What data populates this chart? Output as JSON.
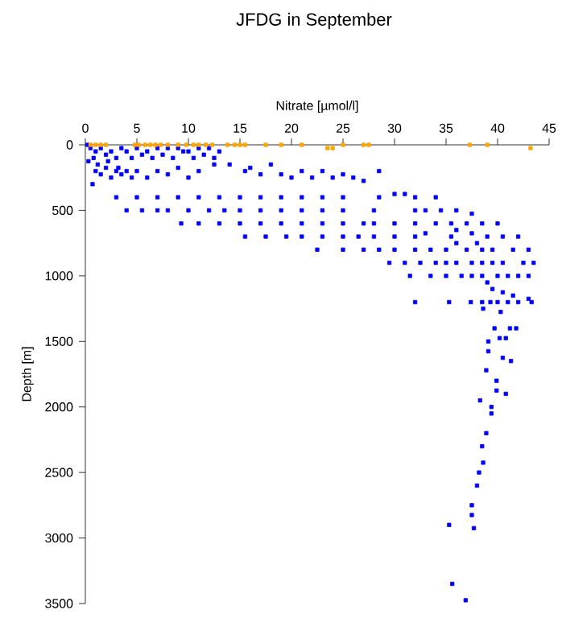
{
  "chart_data": {
    "type": "scatter",
    "title": "JFDG in September",
    "xlabel": "Nitrate [µmol/l]",
    "ylabel": "Depth [m]",
    "xlim": [
      0,
      45
    ],
    "xticks": [
      0,
      5,
      10,
      15,
      20,
      25,
      30,
      35,
      40,
      45
    ],
    "ylim": [
      3500,
      0
    ],
    "yticks": [
      0,
      500,
      1000,
      1500,
      2000,
      2500,
      3000,
      3500
    ],
    "marker": "square",
    "grid": false,
    "series": [
      {
        "color": "#0000ff",
        "x": [
          0.2,
          0.5,
          1,
          1.5,
          2,
          2.5,
          3,
          3.5,
          4,
          4.5,
          5,
          5.5,
          6,
          6.5,
          7,
          7.5,
          8,
          8.5,
          9,
          9.5,
          10,
          10.5,
          11,
          11.5,
          12,
          12.5,
          13,
          0.3,
          0.8,
          1.2,
          2.2,
          3.2,
          1,
          1.5,
          2,
          2.5,
          3,
          3.5,
          4,
          4.5,
          5,
          6,
          7,
          8,
          9,
          10,
          11,
          12.5,
          14,
          15.5,
          16,
          17,
          18,
          19,
          20,
          21,
          22,
          23,
          24,
          25,
          26,
          27,
          28.5,
          0.7,
          3,
          5,
          7,
          9,
          11,
          13,
          15,
          17,
          19,
          21,
          23,
          25,
          28.5,
          30,
          31,
          32,
          34,
          4,
          5.5,
          7,
          8,
          10,
          12,
          13.5,
          15,
          17,
          19,
          21,
          23,
          25,
          28,
          32,
          33,
          34.5,
          36,
          37.5,
          9.3,
          11,
          13,
          15,
          17,
          19,
          21,
          23,
          25,
          27,
          28,
          30,
          32,
          34,
          35.5,
          37,
          38.5,
          40,
          36,
          15.5,
          17.5,
          19.5,
          21,
          23,
          25,
          26.5,
          28,
          30,
          32,
          33,
          35.5,
          37.5,
          39,
          40.5,
          42,
          38,
          22.5,
          25,
          27,
          28.5,
          30,
          32,
          33.5,
          35,
          36,
          37,
          38.5,
          39.5,
          41.5,
          43,
          29.5,
          31,
          32.5,
          34,
          35,
          36,
          37.5,
          38.5,
          39.5,
          40.5,
          42.5,
          43.5,
          31.5,
          33.5,
          35,
          36.5,
          37.5,
          38.5,
          39,
          40,
          41,
          42,
          43,
          32,
          35.3,
          37.4,
          38.5,
          39.3,
          40,
          41,
          42,
          43.3,
          38.6,
          39.5,
          40.5,
          41.5,
          43,
          40.3,
          39.7,
          41.2,
          41.8,
          39.1,
          40.2,
          40.8,
          39.1,
          40.5,
          41.3,
          38.9,
          39.9,
          39.9,
          40.8,
          38.3,
          39.4,
          39.4,
          38.9,
          38.5,
          38.6,
          38.2,
          38,
          37.5,
          37.5,
          35.3,
          37.7,
          35.6,
          36.9
        ],
        "values": [
          0,
          25,
          50,
          25,
          75,
          50,
          100,
          25,
          50,
          100,
          25,
          75,
          50,
          100,
          25,
          75,
          25,
          100,
          25,
          50,
          50,
          100,
          25,
          75,
          25,
          100,
          50,
          125,
          100,
          150,
          125,
          175,
          200,
          225,
          175,
          250,
          200,
          225,
          200,
          250,
          200,
          250,
          200,
          225,
          175,
          250,
          200,
          150,
          150,
          200,
          175,
          225,
          150,
          225,
          250,
          200,
          250,
          200,
          250,
          225,
          250,
          275,
          200,
          300,
          400,
          400,
          400,
          400,
          400,
          400,
          400,
          400,
          400,
          400,
          400,
          400,
          400,
          375,
          375,
          400,
          400,
          500,
          500,
          500,
          500,
          500,
          500,
          500,
          500,
          500,
          500,
          500,
          500,
          500,
          500,
          500,
          500,
          500,
          500,
          525,
          600,
          600,
          600,
          600,
          600,
          600,
          600,
          600,
          600,
          600,
          600,
          600,
          600,
          600,
          600,
          600,
          600,
          600,
          650,
          700,
          700,
          700,
          700,
          700,
          700,
          700,
          700,
          700,
          700,
          675,
          700,
          675,
          700,
          700,
          700,
          750,
          800,
          800,
          800,
          800,
          800,
          800,
          800,
          800,
          750,
          800,
          800,
          800,
          800,
          800,
          900,
          900,
          900,
          900,
          900,
          900,
          900,
          900,
          900,
          900,
          900,
          900,
          1000,
          1000,
          1000,
          1000,
          1000,
          1000,
          1050,
          1000,
          1000,
          1000,
          1000,
          1200,
          1200,
          1200,
          1200,
          1200,
          1200,
          1200,
          1200,
          1200,
          1250,
          1100,
          1125,
          1150,
          1175,
          1275,
          1400,
          1400,
          1400,
          1500,
          1475,
          1475,
          1575,
          1625,
          1650,
          1720,
          1800,
          1875,
          1900,
          1950,
          2000,
          2050,
          2200,
          2300,
          2425,
          2500,
          2600,
          2750,
          2825,
          2900,
          2925,
          3350,
          3475
        ]
      },
      {
        "color": "#ffa500",
        "x": [
          0.5,
          1,
          1.5,
          2,
          4.8,
          5.2,
          5.8,
          6.3,
          6.8,
          7.3,
          8,
          9,
          9.8,
          10.5,
          11,
          11.7,
          12.3,
          13.8,
          14.5,
          15,
          15.5,
          17.5,
          19,
          21,
          23.5,
          24,
          25,
          27,
          27.5,
          37.3,
          39,
          43.2
        ],
        "values": [
          0,
          0,
          0,
          0,
          0,
          0,
          0,
          0,
          0,
          0,
          0,
          0,
          0,
          0,
          0,
          0,
          0,
          0,
          0,
          0,
          0,
          0,
          0,
          0,
          25,
          25,
          0,
          0,
          0,
          0,
          0,
          25
        ]
      }
    ]
  }
}
